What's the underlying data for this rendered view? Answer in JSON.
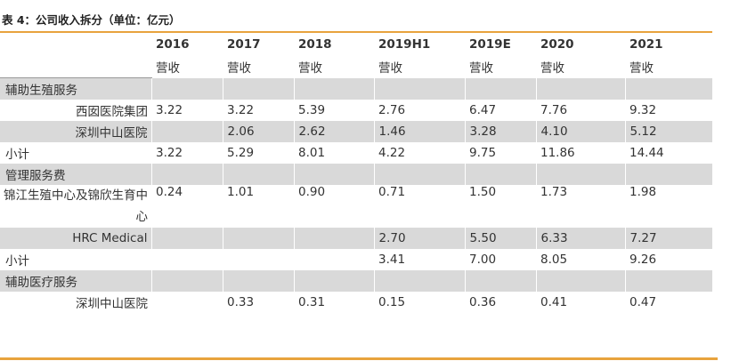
{
  "caption": "表 4：公司收入拆分（单位：亿元）",
  "columns": [
    "2016",
    "2017",
    "2018",
    "2019H1",
    "2019E",
    "2020",
    "2021"
  ],
  "sub_header": [
    "营收",
    "营收",
    "营收",
    "营收",
    "营收",
    "营收",
    "营收"
  ],
  "rows": [
    {
      "type": "section",
      "label": "辅助生殖服务",
      "values": [
        "",
        "",
        "",
        "",
        "",
        "",
        ""
      ]
    },
    {
      "type": "item",
      "label": "西囡医院集团",
      "values": [
        "3.22",
        "3.22",
        "5.39",
        "2.76",
        "6.47",
        "7.76",
        "9.32"
      ]
    },
    {
      "type": "item",
      "label": "深圳中山医院",
      "values": [
        "",
        "2.06",
        "2.62",
        "1.46",
        "3.28",
        "4.10",
        "5.12"
      ]
    },
    {
      "type": "total",
      "label": "小计",
      "values": [
        "3.22",
        "5.29",
        "8.01",
        "4.22",
        "9.75",
        "11.86",
        "14.44"
      ]
    },
    {
      "type": "section",
      "label": "管理服务费",
      "values": [
        "",
        "",
        "",
        "",
        "",
        "",
        ""
      ]
    },
    {
      "type": "item",
      "label": "锦江生殖中心及锦欣生育中心",
      "values": [
        "0.24",
        "1.01",
        "0.90",
        "0.71",
        "1.50",
        "1.73",
        "1.98"
      ]
    },
    {
      "type": "item",
      "label": "HRC Medical",
      "values": [
        "",
        "",
        "",
        "2.70",
        "5.50",
        "6.33",
        "7.27"
      ]
    },
    {
      "type": "total",
      "label": "小计",
      "values": [
        "",
        "",
        "",
        "3.41",
        "7.00",
        "8.05",
        "9.26"
      ]
    },
    {
      "type": "section",
      "label": "辅助医疗服务",
      "values": [
        "",
        "",
        "",
        "",
        "",
        "",
        ""
      ]
    },
    {
      "type": "item",
      "label": "深圳中山医院",
      "values": [
        "",
        "0.33",
        "0.31",
        "0.15",
        "0.36",
        "0.41",
        "0.47"
      ]
    }
  ]
}
